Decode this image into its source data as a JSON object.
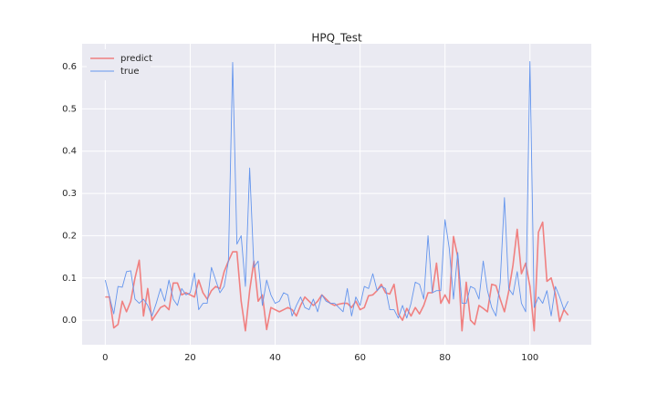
{
  "chart_data": {
    "type": "line",
    "title": "HPQ_Test",
    "x": [
      0,
      1,
      2,
      3,
      4,
      5,
      6,
      7,
      8,
      9,
      10,
      11,
      12,
      13,
      14,
      15,
      16,
      17,
      18,
      19,
      20,
      21,
      22,
      23,
      24,
      25,
      26,
      27,
      28,
      29,
      30,
      31,
      32,
      33,
      34,
      35,
      36,
      37,
      38,
      39,
      40,
      41,
      42,
      43,
      44,
      45,
      46,
      47,
      48,
      49,
      50,
      51,
      52,
      53,
      54,
      55,
      56,
      57,
      58,
      59,
      60,
      61,
      62,
      63,
      64,
      65,
      66,
      67,
      68,
      69,
      70,
      71,
      72,
      73,
      74,
      75,
      76,
      77,
      78,
      79,
      80,
      81,
      82,
      83,
      84,
      85,
      86,
      87,
      88,
      89,
      90,
      91,
      92,
      93,
      94,
      95,
      96,
      97,
      98,
      99,
      100,
      101,
      102,
      103,
      104,
      105,
      106,
      107,
      108,
      109
    ],
    "series": [
      {
        "name": "predict",
        "color": "#f08080",
        "values": [
          0.055,
          0.055,
          -0.018,
          -0.01,
          0.045,
          0.02,
          0.045,
          0.1,
          0.142,
          0.01,
          0.075,
          0.0,
          0.015,
          0.03,
          0.035,
          0.025,
          0.088,
          0.088,
          0.06,
          0.065,
          0.06,
          0.055,
          0.095,
          0.065,
          0.05,
          0.07,
          0.08,
          0.075,
          0.115,
          0.14,
          0.162,
          0.162,
          0.045,
          -0.025,
          0.07,
          0.14,
          0.045,
          0.06,
          -0.022,
          0.03,
          0.025,
          0.02,
          0.025,
          0.03,
          0.025,
          0.01,
          0.035,
          0.055,
          0.045,
          0.035,
          0.045,
          0.06,
          0.05,
          0.04,
          0.035,
          0.038,
          0.04,
          0.04,
          0.03,
          0.045,
          0.025,
          0.03,
          0.058,
          0.06,
          0.07,
          0.085,
          0.065,
          0.062,
          0.085,
          0.015,
          0.0,
          0.028,
          0.01,
          0.03,
          0.015,
          0.035,
          0.065,
          0.065,
          0.135,
          0.04,
          0.06,
          0.04,
          0.198,
          0.15,
          -0.025,
          0.09,
          0.0,
          -0.01,
          0.035,
          0.028,
          0.02,
          0.085,
          0.082,
          0.05,
          0.02,
          0.068,
          0.13,
          0.215,
          0.11,
          0.135,
          0.08,
          -0.025,
          0.208,
          0.232,
          0.092,
          0.1,
          0.062,
          -0.003,
          0.025,
          0.012
        ]
      },
      {
        "name": "true",
        "color": "#6495ed",
        "values": [
          0.095,
          0.055,
          0.015,
          0.08,
          0.078,
          0.115,
          0.117,
          0.05,
          0.04,
          0.05,
          0.035,
          0.01,
          0.04,
          0.075,
          0.045,
          0.095,
          0.05,
          0.035,
          0.075,
          0.06,
          0.065,
          0.112,
          0.025,
          0.04,
          0.04,
          0.125,
          0.095,
          0.065,
          0.08,
          0.14,
          0.61,
          0.18,
          0.2,
          0.08,
          0.36,
          0.125,
          0.14,
          0.035,
          0.095,
          0.06,
          0.04,
          0.045,
          0.065,
          0.06,
          0.01,
          0.035,
          0.055,
          0.03,
          0.025,
          0.05,
          0.02,
          0.06,
          0.045,
          0.04,
          0.04,
          0.03,
          0.02,
          0.075,
          0.01,
          0.055,
          0.035,
          0.08,
          0.075,
          0.11,
          0.07,
          0.08,
          0.075,
          0.025,
          0.025,
          0.005,
          0.035,
          0.005,
          0.04,
          0.09,
          0.085,
          0.05,
          0.2,
          0.065,
          0.07,
          0.07,
          0.238,
          0.17,
          0.05,
          0.16,
          0.04,
          0.04,
          0.08,
          0.075,
          0.05,
          0.14,
          0.07,
          0.03,
          0.01,
          0.09,
          0.29,
          0.075,
          0.06,
          0.115,
          0.04,
          0.02,
          0.612,
          0.03,
          0.055,
          0.04,
          0.07,
          0.01,
          0.08,
          0.055,
          0.025,
          0.045
        ]
      }
    ],
    "xlim": [
      -5.45,
      114.45
    ],
    "ylim": [
      -0.058,
      0.654
    ],
    "xticks": [
      0,
      20,
      40,
      60,
      80,
      100
    ],
    "yticks": [
      {
        "value": 0,
        "label": "0.0"
      },
      0.1,
      0.2,
      0.3,
      0.4,
      0.5,
      0.6
    ],
    "grid": true,
    "legend": "upper left"
  }
}
